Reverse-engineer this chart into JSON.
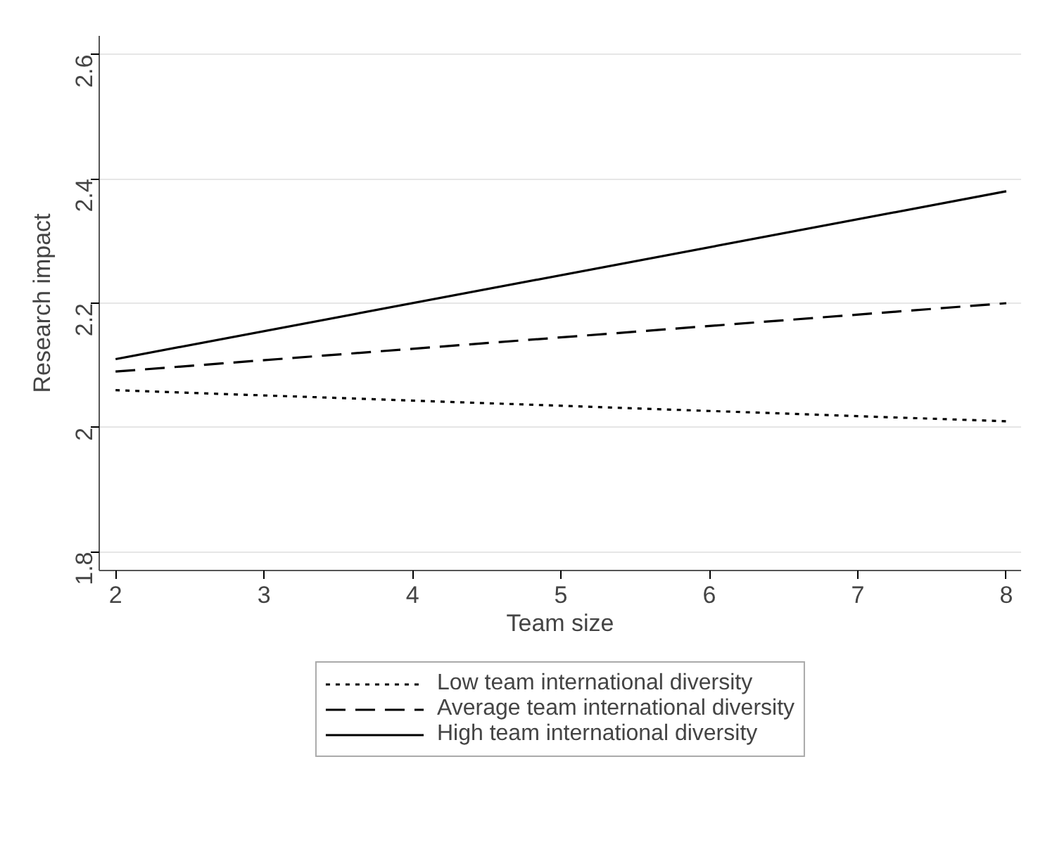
{
  "chart_data": {
    "type": "line",
    "xlabel": "Team size",
    "ylabel": "Research impact",
    "xlim": [
      1.89,
      8.1
    ],
    "ylim": [
      1.77,
      2.63
    ],
    "xticks": [
      2,
      3,
      4,
      5,
      6,
      7,
      8
    ],
    "yticks": [
      1.8,
      2,
      2.2,
      2.4,
      2.6
    ],
    "grid": "y",
    "legend": "bottom",
    "marker": "none",
    "x": [
      2,
      8
    ],
    "series": [
      {
        "name": "Low team international diversity",
        "color": "#000000",
        "line_style": "dotted",
        "values": [
          2.06,
          2.01
        ]
      },
      {
        "name": "Average team international diversity",
        "color": "#000000",
        "line_style": "dashed",
        "values": [
          2.09,
          2.2
        ]
      },
      {
        "name": "High team international diversity",
        "color": "#000000",
        "line_style": "solid",
        "values": [
          2.11,
          2.38
        ]
      }
    ]
  }
}
